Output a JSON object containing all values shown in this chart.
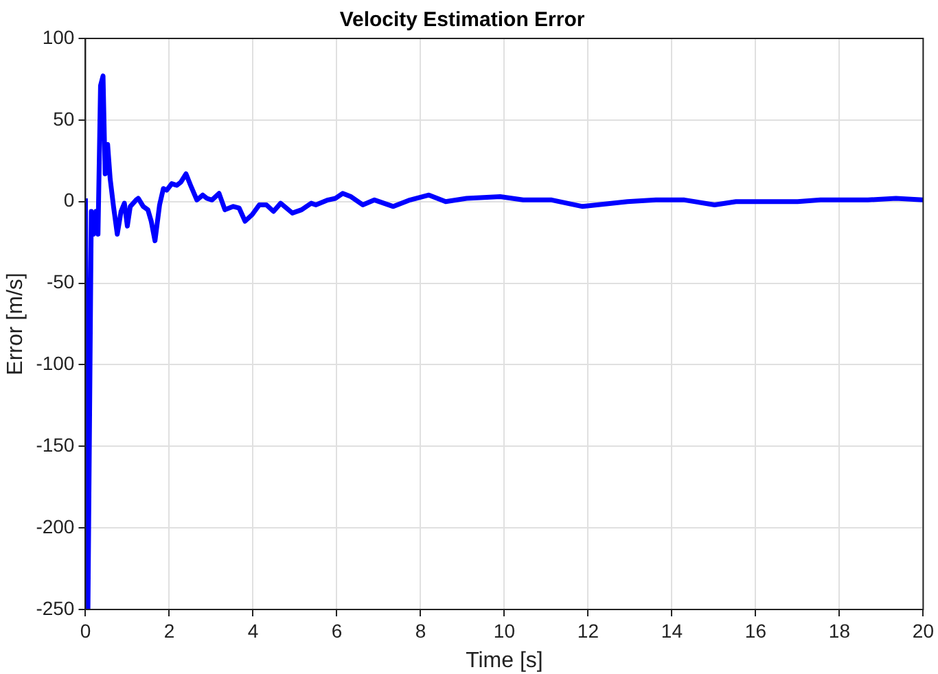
{
  "chart_data": {
    "type": "line",
    "title": "Velocity Estimation Error",
    "xlabel": "Time [s]",
    "ylabel": "Error [m/s]",
    "xlim": [
      0,
      20
    ],
    "ylim": [
      -250,
      100
    ],
    "xticks": [
      0,
      2,
      4,
      6,
      8,
      10,
      12,
      14,
      16,
      18,
      20
    ],
    "yticks": [
      -250,
      -200,
      -150,
      -100,
      -50,
      0,
      50,
      100
    ],
    "grid": true,
    "legend": false,
    "marker": "none",
    "line_style": "solid",
    "series": [
      {
        "color": "#0000ff",
        "x": [
          0,
          0.06,
          0.14,
          0.19,
          0.25,
          0.3,
          0.36,
          0.42,
          0.47,
          0.53,
          0.59,
          0.67,
          0.76,
          0.85,
          0.93,
          1.0,
          1.07,
          1.21,
          1.26,
          1.38,
          1.49,
          1.57,
          1.66,
          1.77,
          1.86,
          1.94,
          2.06,
          2.18,
          2.28,
          2.4,
          2.51,
          2.66,
          2.8,
          2.9,
          3.02,
          3.19,
          3.33,
          3.53,
          3.67,
          3.81,
          3.98,
          4.15,
          4.32,
          4.49,
          4.66,
          4.94,
          5.16,
          5.39,
          5.5,
          5.79,
          5.97,
          6.14,
          6.34,
          6.62,
          6.9,
          7.35,
          7.75,
          8.2,
          8.6,
          9.1,
          9.9,
          10.45,
          11.13,
          11.87,
          12.94,
          13.62,
          14.3,
          15.02,
          15.53,
          16.43,
          17,
          17.55,
          18.68,
          19.35,
          20
        ],
        "values": [
          2,
          -250,
          -6,
          -20,
          -6,
          -20,
          71,
          77,
          17,
          35,
          14,
          -3,
          -20,
          -6,
          -1,
          -15,
          -3,
          1,
          2,
          -3,
          -5,
          -12,
          -24,
          -2,
          8,
          7,
          11,
          10,
          12,
          17,
          10,
          1,
          4,
          2,
          1,
          5,
          -5,
          -3,
          -4,
          -12,
          -8,
          -2,
          -2,
          -6,
          -1,
          -7,
          -5,
          -1,
          -2,
          1,
          2,
          5,
          3,
          -2,
          1,
          -3,
          1,
          4,
          0,
          2,
          3,
          1,
          1,
          -3,
          0,
          1,
          1,
          -2,
          0,
          0,
          0,
          1,
          1,
          2,
          1
        ]
      }
    ]
  }
}
